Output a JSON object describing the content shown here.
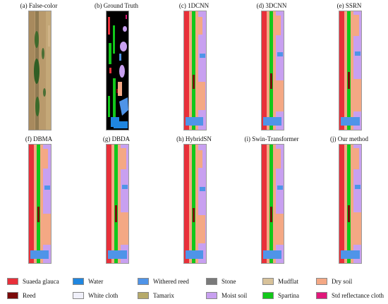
{
  "panels": [
    {
      "caption": "(a) False-color",
      "kind": "false"
    },
    {
      "caption": "(b) Ground Truth",
      "kind": "gt"
    },
    {
      "caption": "(c) 1DCNN",
      "kind": "map"
    },
    {
      "caption": "(d) 3DCNN",
      "kind": "map"
    },
    {
      "caption": "(e) SSRN",
      "kind": "map"
    },
    {
      "caption": "(f) DBMA",
      "kind": "map"
    },
    {
      "caption": "(g) DBDA",
      "kind": "map"
    },
    {
      "caption": "(h) HybridSN",
      "kind": "map"
    },
    {
      "caption": "(i) Swin-Transformer",
      "kind": "map"
    },
    {
      "caption": "(j) Our method",
      "kind": "map"
    }
  ],
  "legend": [
    {
      "label": "Suaeda glauca",
      "color": "#e8303a"
    },
    {
      "label": "Water",
      "color": "#1f86e0"
    },
    {
      "label": "Withered reed",
      "color": "#4f94e8"
    },
    {
      "label": "Stone",
      "color": "#7a7a7a"
    },
    {
      "label": "Mudflat",
      "color": "#d8c29a"
    },
    {
      "label": "Dry soil",
      "color": "#f4a884"
    },
    {
      "label": "Reed",
      "color": "#7a0a0a"
    },
    {
      "label": "White cloth",
      "color": "#f0f0fa"
    },
    {
      "label": "Tamarix",
      "color": "#b6aa6a"
    },
    {
      "label": "Moist soil",
      "color": "#c8a0f0"
    },
    {
      "label": "Spartina",
      "color": "#12c81a"
    },
    {
      "label": "Std reflectance cloth",
      "color": "#e0187a"
    }
  ]
}
